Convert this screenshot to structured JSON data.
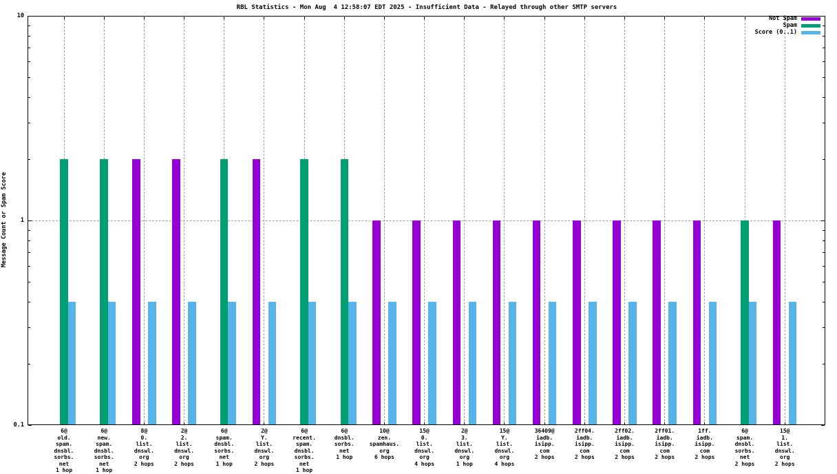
{
  "chart_data": {
    "type": "bar",
    "title": "RBL Statistics - Mon Aug  4 12:58:07 EDT 2025 - Insufficient Data - Relayed through other SMTP servers",
    "ylabel": "Message Count or Spam Score",
    "y_scale": "log",
    "ylim": [
      0.1,
      10
    ],
    "yticks": [
      {
        "value": 0.1,
        "label": "0.1"
      },
      {
        "value": 1,
        "label": "1"
      },
      {
        "value": 10,
        "label": "10"
      }
    ],
    "grid": true,
    "legend_position": "top-right-inside",
    "categories": [
      [
        "6@",
        "old.",
        "spam.",
        "dnsbl.",
        "sorbs.",
        "net",
        "1 hop"
      ],
      [
        "6@",
        "new.",
        "spam.",
        "dnsbl.",
        "sorbs.",
        "net",
        "1 hop"
      ],
      [
        "8@",
        "0.",
        "list.",
        "dnswl.",
        "org",
        "2 hops"
      ],
      [
        "2@",
        "2.",
        "list.",
        "dnswl.",
        "org",
        "2 hops"
      ],
      [
        "6@",
        "spam.",
        "dnsbl.",
        "sorbs.",
        "net",
        "1 hop"
      ],
      [
        "2@",
        "Y.",
        "list.",
        "dnswl.",
        "org",
        "2 hops"
      ],
      [
        "6@",
        "recent.",
        "spam.",
        "dnsbl.",
        "sorbs.",
        "net",
        "1 hop"
      ],
      [
        "6@",
        "dnsbl.",
        "sorbs.",
        "net",
        "1 hop"
      ],
      [
        "10@",
        "zen.",
        "spamhaus.",
        "org",
        "6 hops"
      ],
      [
        "15@",
        "0.",
        "list.",
        "dnswl.",
        "org",
        "4 hops"
      ],
      [
        "2@",
        "3.",
        "list.",
        "dnswl.",
        "org",
        "1 hop"
      ],
      [
        "15@",
        "Y.",
        "list.",
        "dnswl.",
        "org",
        "4 hops"
      ],
      [
        "36409@",
        "iadb.",
        "isipp.",
        "com",
        "2 hops"
      ],
      [
        "2ff04.",
        "iadb.",
        "isipp.",
        "com",
        "2 hops"
      ],
      [
        "2ff02.",
        "iadb.",
        "isipp.",
        "com",
        "2 hops"
      ],
      [
        "2ff01.",
        "iadb.",
        "isipp.",
        "com",
        "2 hops"
      ],
      [
        "1ff.",
        "iadb.",
        "isipp.",
        "com",
        "2 hops"
      ],
      [
        "6@",
        "spam.",
        "dnsbl.",
        "sorbs.",
        "net",
        "2 hops"
      ],
      [
        "15@",
        "1.",
        "list.",
        "dnswl.",
        "org",
        "2 hops"
      ]
    ],
    "series": [
      {
        "name": "Not Spam",
        "color": "#9400d3",
        "values": [
          0,
          0,
          2,
          2,
          0,
          2,
          0,
          0,
          1,
          1,
          1,
          1,
          1,
          1,
          1,
          1,
          1,
          0,
          1
        ]
      },
      {
        "name": "Spam",
        "color": "#009e73",
        "values": [
          2,
          2,
          0,
          0,
          2,
          0,
          2,
          2,
          0,
          0,
          0,
          0,
          0,
          0,
          0,
          0,
          0,
          1,
          0
        ]
      },
      {
        "name": "Score (0..1)",
        "color": "#56b4e9",
        "values": [
          0.4,
          0.4,
          0.4,
          0.4,
          0.4,
          0.4,
          0.4,
          0.4,
          0.4,
          0.4,
          0.4,
          0.4,
          0.4,
          0.4,
          0.4,
          0.4,
          0.4,
          0.4,
          0.4
        ]
      }
    ]
  },
  "colors": {
    "not_spam": "#9400d3",
    "spam": "#009e73",
    "score": "#56b4e9",
    "grid": "#9c9c9c",
    "frame": "#000000",
    "background": "#ffffff"
  }
}
